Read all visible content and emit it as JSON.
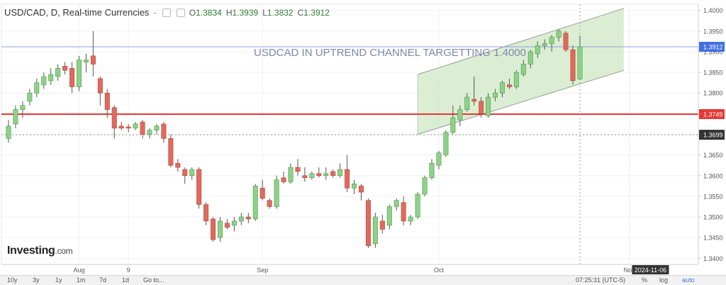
{
  "header": {
    "symbol": "USD/CAD, D, Real-time Currencies",
    "minus": "-",
    "open_label": "O",
    "open": "1.3834",
    "high_label": "H",
    "high": "1.3939",
    "low_label": "L",
    "low": "1.3832",
    "close_label": "C",
    "close": "1.3912"
  },
  "watermark": {
    "brand": "Investing",
    "suffix": ".com"
  },
  "toolbar": {
    "ranges": [
      "10y",
      "3y",
      "1y",
      "1m",
      "7d",
      "1d",
      "Go to..."
    ],
    "time": "07:25:31 (UTC-5)",
    "percent": "%",
    "log": "log",
    "auto": "auto"
  },
  "colors": {
    "up": "#8fd08a",
    "down": "#e06a5e",
    "support": "#e53935",
    "channel_fill": "#cfe8c4"
  },
  "chart_data": {
    "type": "candlestick",
    "annotation": "USDCAD IN UPTREND CHANNEL TARGETTING 1.4000",
    "x_labels": [
      "Aug",
      "9",
      "Sep",
      "Oct",
      "Nov",
      "2024-11-06"
    ],
    "y_ticks": [
      1.34,
      1.345,
      1.35,
      1.355,
      1.36,
      1.365,
      1.37,
      1.375,
      1.38,
      1.385,
      1.39,
      1.395,
      1.4
    ],
    "y_tick_labels": [
      "1.3400",
      "1.3450",
      "1.3500",
      "1.3550",
      "1.3600",
      "1.3650",
      "1.3700",
      "1.3750",
      "1.3800",
      "1.3850",
      "1.3900",
      "1.3950",
      "1.4000"
    ],
    "ylim": [
      1.3385,
      1.4015
    ],
    "price_tags": [
      {
        "label": "1.3912",
        "value": 1.3912,
        "style": "current"
      },
      {
        "label": "1.3749",
        "value": 1.3749,
        "style": "support"
      },
      {
        "label": "1.3699",
        "value": 1.3699,
        "style": "dark"
      }
    ],
    "horizontal_lines": [
      {
        "value": 1.3749,
        "style": "support"
      },
      {
        "value": 1.3912,
        "style": "current"
      },
      {
        "value": 1.3699,
        "style": "dotted"
      }
    ],
    "channel": {
      "start_index": 58,
      "end_index": 82,
      "upper": [
        1.3845,
        1.4005
      ],
      "lower": [
        1.37,
        1.3855
      ]
    },
    "candles": [
      [
        1.369,
        1.3735,
        1.368,
        1.372
      ],
      [
        1.3725,
        1.377,
        1.3715,
        1.376
      ],
      [
        1.376,
        1.378,
        1.374,
        1.377
      ],
      [
        1.378,
        1.381,
        1.377,
        1.38
      ],
      [
        1.38,
        1.3835,
        1.379,
        1.3825
      ],
      [
        1.382,
        1.385,
        1.381,
        1.384
      ],
      [
        1.383,
        1.386,
        1.382,
        1.3845
      ],
      [
        1.384,
        1.387,
        1.383,
        1.386
      ],
      [
        1.3865,
        1.3875,
        1.3845,
        1.3855
      ],
      [
        1.386,
        1.3875,
        1.38,
        1.3815
      ],
      [
        1.3815,
        1.389,
        1.3805,
        1.388
      ],
      [
        1.3875,
        1.3895,
        1.385,
        1.388
      ],
      [
        1.389,
        1.395,
        1.384,
        1.387
      ],
      [
        1.3835,
        1.384,
        1.377,
        1.38
      ],
      [
        1.38,
        1.381,
        1.374,
        1.376
      ],
      [
        1.3765,
        1.377,
        1.369,
        1.3715
      ],
      [
        1.372,
        1.373,
        1.371,
        1.3715
      ],
      [
        1.3718,
        1.3725,
        1.3705,
        1.3715
      ],
      [
        1.3715,
        1.373,
        1.371,
        1.3725
      ],
      [
        1.373,
        1.3735,
        1.369,
        1.37
      ],
      [
        1.37,
        1.3715,
        1.369,
        1.371
      ],
      [
        1.371,
        1.3725,
        1.37,
        1.372
      ],
      [
        1.3725,
        1.373,
        1.368,
        1.369
      ],
      [
        1.369,
        1.37,
        1.362,
        1.3625
      ],
      [
        1.363,
        1.364,
        1.361,
        1.362
      ],
      [
        1.3615,
        1.362,
        1.358,
        1.36
      ],
      [
        1.36,
        1.362,
        1.359,
        1.3615
      ],
      [
        1.3615,
        1.362,
        1.352,
        1.353
      ],
      [
        1.353,
        1.3535,
        1.348,
        1.349
      ],
      [
        1.3495,
        1.35,
        1.344,
        1.3445
      ],
      [
        1.345,
        1.35,
        1.344,
        1.349
      ],
      [
        1.3485,
        1.3495,
        1.347,
        1.3475
      ],
      [
        1.348,
        1.35,
        1.3465,
        1.349
      ],
      [
        1.349,
        1.351,
        1.348,
        1.35
      ],
      [
        1.35,
        1.351,
        1.3485,
        1.3495
      ],
      [
        1.3495,
        1.358,
        1.349,
        1.3575
      ],
      [
        1.357,
        1.359,
        1.354,
        1.3545
      ],
      [
        1.354,
        1.3545,
        1.352,
        1.3525
      ],
      [
        1.3525,
        1.36,
        1.352,
        1.359
      ],
      [
        1.3595,
        1.361,
        1.358,
        1.3585
      ],
      [
        1.3585,
        1.363,
        1.358,
        1.362
      ],
      [
        1.362,
        1.364,
        1.36,
        1.361
      ],
      [
        1.36,
        1.362,
        1.3585,
        1.3595
      ],
      [
        1.3595,
        1.361,
        1.359,
        1.3605
      ],
      [
        1.3605,
        1.362,
        1.3595,
        1.36
      ],
      [
        1.36,
        1.362,
        1.359,
        1.3605
      ],
      [
        1.361,
        1.3615,
        1.3595,
        1.36
      ],
      [
        1.36,
        1.363,
        1.3595,
        1.3615
      ],
      [
        1.3615,
        1.365,
        1.356,
        1.357
      ],
      [
        1.357,
        1.359,
        1.3555,
        1.358
      ],
      [
        1.3575,
        1.358,
        1.354,
        1.356
      ],
      [
        1.354,
        1.3545,
        1.3425,
        1.343
      ],
      [
        1.3435,
        1.351,
        1.3425,
        1.35
      ],
      [
        1.349,
        1.3505,
        1.346,
        1.347
      ],
      [
        1.348,
        1.353,
        1.347,
        1.3525
      ],
      [
        1.3525,
        1.3545,
        1.3515,
        1.354
      ],
      [
        1.3535,
        1.355,
        1.348,
        1.349
      ],
      [
        1.349,
        1.3505,
        1.348,
        1.35
      ],
      [
        1.35,
        1.356,
        1.3495,
        1.3555
      ],
      [
        1.3555,
        1.36,
        1.355,
        1.3595
      ],
      [
        1.3595,
        1.364,
        1.359,
        1.363
      ],
      [
        1.3625,
        1.366,
        1.3615,
        1.3655
      ],
      [
        1.365,
        1.371,
        1.3645,
        1.3705
      ],
      [
        1.3705,
        1.377,
        1.37,
        1.374
      ],
      [
        1.3735,
        1.377,
        1.372,
        1.376
      ],
      [
        1.376,
        1.38,
        1.3755,
        1.379
      ],
      [
        1.3785,
        1.384,
        1.377,
        1.378
      ],
      [
        1.378,
        1.379,
        1.374,
        1.375
      ],
      [
        1.3745,
        1.38,
        1.374,
        1.379
      ],
      [
        1.379,
        1.381,
        1.378,
        1.38
      ],
      [
        1.38,
        1.383,
        1.379,
        1.3825
      ],
      [
        1.382,
        1.3835,
        1.381,
        1.3815
      ],
      [
        1.3815,
        1.3855,
        1.381,
        1.385
      ],
      [
        1.3845,
        1.388,
        1.384,
        1.387
      ],
      [
        1.387,
        1.3905,
        1.386,
        1.39
      ],
      [
        1.3895,
        1.3925,
        1.3885,
        1.3915
      ],
      [
        1.3915,
        1.393,
        1.3905,
        1.392
      ],
      [
        1.392,
        1.394,
        1.39,
        1.3935
      ],
      [
        1.3935,
        1.3955,
        1.3925,
        1.395
      ],
      [
        1.3945,
        1.395,
        1.39,
        1.3905
      ],
      [
        1.3905,
        1.3915,
        1.382,
        1.383
      ],
      [
        1.3834,
        1.3939,
        1.3832,
        1.3912
      ]
    ]
  }
}
